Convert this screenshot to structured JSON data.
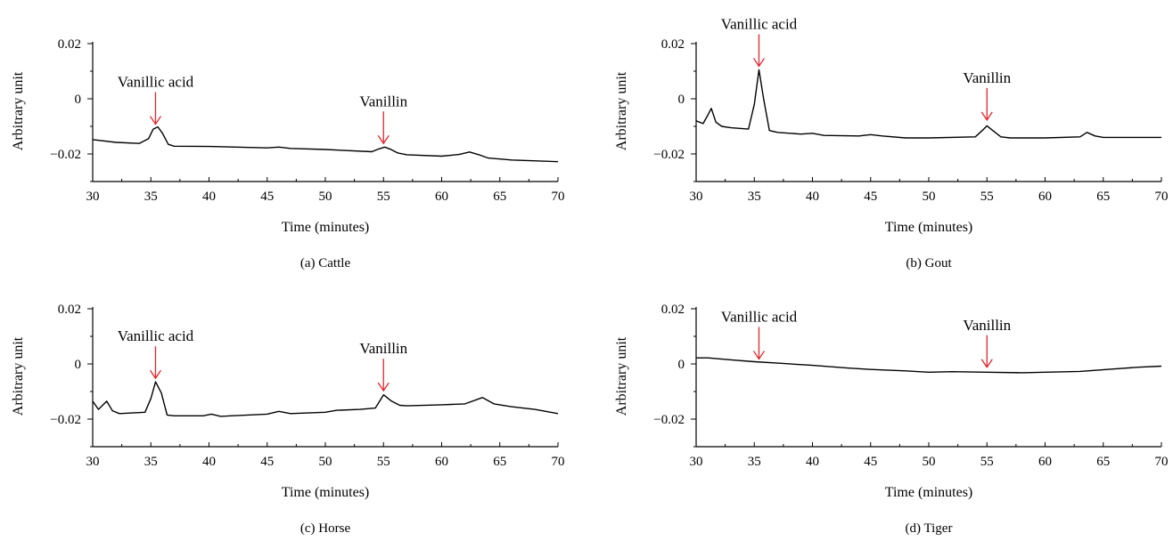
{
  "chart_data": [
    {
      "type": "line",
      "caption": "(a)  Cattle",
      "xlabel": "Time (minutes)",
      "ylabel": "Arbitrary unit",
      "xlim": [
        30,
        70
      ],
      "ylim": [
        -0.03,
        0.02
      ],
      "xticks": [
        30,
        35,
        40,
        45,
        50,
        55,
        60,
        65,
        70
      ],
      "yticks": [
        0.02,
        0,
        -0.02
      ],
      "ytick_labels": [
        "0.02",
        "0",
        "−0.02"
      ],
      "annotations": [
        {
          "label": "Vanillic acid",
          "x": 35.4,
          "y": -0.0105,
          "arrow_color": "#e3242b"
        },
        {
          "label": "Vanillin",
          "x": 55.0,
          "y": -0.0175,
          "arrow_color": "#e3242b"
        }
      ],
      "series": [
        {
          "x": [
            30,
            32,
            34,
            34.8,
            35.2,
            35.6,
            36.0,
            36.5,
            37,
            40,
            45,
            46,
            47,
            50,
            54,
            54.6,
            55.1,
            55.6,
            56.2,
            57,
            60,
            61.5,
            62.4,
            63.2,
            64,
            66,
            70
          ],
          "values": [
            -0.0148,
            -0.0158,
            -0.0162,
            -0.0145,
            -0.011,
            -0.0102,
            -0.0125,
            -0.0165,
            -0.0172,
            -0.0173,
            -0.0178,
            -0.0175,
            -0.018,
            -0.0184,
            -0.0192,
            -0.0182,
            -0.0175,
            -0.0183,
            -0.0196,
            -0.0203,
            -0.0208,
            -0.0202,
            -0.0193,
            -0.0203,
            -0.0215,
            -0.0222,
            -0.0228
          ]
        }
      ]
    },
    {
      "type": "line",
      "caption": "(b)  Gout",
      "xlabel": "Time (minutes)",
      "ylabel": "Arbitrary unit",
      "xlim": [
        30,
        70
      ],
      "ylim": [
        -0.03,
        0.02
      ],
      "xticks": [
        30,
        35,
        40,
        45,
        50,
        55,
        60,
        65,
        70
      ],
      "yticks": [
        0.02,
        0,
        -0.02
      ],
      "ytick_labels": [
        "0.02",
        "0",
        "−0.02"
      ],
      "annotations": [
        {
          "label": "Vanillic acid",
          "x": 35.4,
          "y": 0.0105,
          "arrow_color": "#e3242b"
        },
        {
          "label": "Vanillin",
          "x": 55.0,
          "y": -0.009,
          "arrow_color": "#e3242b"
        }
      ],
      "series": [
        {
          "x": [
            30,
            30.6,
            31.0,
            31.3,
            31.7,
            32.2,
            33,
            34.5,
            35.0,
            35.4,
            35.8,
            36.3,
            37,
            39,
            40,
            41,
            44,
            45,
            46,
            48,
            50,
            54,
            54.6,
            55.0,
            55.5,
            56.2,
            57,
            60,
            63,
            63.6,
            64.3,
            65,
            70
          ],
          "values": [
            -0.008,
            -0.009,
            -0.006,
            -0.0035,
            -0.0085,
            -0.01,
            -0.0105,
            -0.011,
            -0.002,
            0.0105,
            0.0,
            -0.0115,
            -0.0122,
            -0.0128,
            -0.0125,
            -0.0133,
            -0.0135,
            -0.013,
            -0.0135,
            -0.0142,
            -0.0142,
            -0.0138,
            -0.0115,
            -0.0098,
            -0.0115,
            -0.0138,
            -0.0142,
            -0.0142,
            -0.0138,
            -0.0122,
            -0.0135,
            -0.014,
            -0.014
          ]
        }
      ]
    },
    {
      "type": "line",
      "caption": "(c)  Horse",
      "xlabel": "Time (minutes)",
      "ylabel": "Arbitrary unit",
      "xlim": [
        30,
        70
      ],
      "ylim": [
        -0.03,
        0.02
      ],
      "xticks": [
        30,
        35,
        40,
        45,
        50,
        55,
        60,
        65,
        70
      ],
      "yticks": [
        0.02,
        0,
        -0.02
      ],
      "ytick_labels": [
        "0.02",
        "0",
        "−0.02"
      ],
      "annotations": [
        {
          "label": "Vanillic acid",
          "x": 35.4,
          "y": -0.0065,
          "arrow_color": "#e3242b"
        },
        {
          "label": "Vanillin",
          "x": 55.0,
          "y": -0.011,
          "arrow_color": "#e3242b"
        }
      ],
      "series": [
        {
          "x": [
            30,
            30.5,
            31.2,
            31.7,
            32.3,
            34.5,
            35.0,
            35.4,
            35.9,
            36.4,
            37,
            39.5,
            40.2,
            41,
            45,
            46.0,
            47,
            50,
            51,
            53,
            54.3,
            55.0,
            55.7,
            56.4,
            57,
            60,
            62,
            63.5,
            64.5,
            66,
            68,
            70
          ],
          "values": [
            -0.0135,
            -0.0165,
            -0.0135,
            -0.017,
            -0.018,
            -0.0175,
            -0.0125,
            -0.0065,
            -0.0105,
            -0.0185,
            -0.0188,
            -0.0188,
            -0.0182,
            -0.019,
            -0.0182,
            -0.0172,
            -0.018,
            -0.0175,
            -0.0168,
            -0.0165,
            -0.016,
            -0.0112,
            -0.0135,
            -0.015,
            -0.0152,
            -0.0148,
            -0.0145,
            -0.0122,
            -0.0145,
            -0.0155,
            -0.0165,
            -0.018
          ]
        }
      ]
    },
    {
      "type": "line",
      "caption": "(d)  Tiger",
      "xlabel": "Time (minutes)",
      "ylabel": "Arbitrary unit",
      "xlim": [
        30,
        70
      ],
      "ylim": [
        -0.03,
        0.02
      ],
      "xticks": [
        30,
        35,
        40,
        45,
        50,
        55,
        60,
        65,
        70
      ],
      "yticks": [
        0.02,
        0,
        -0.02
      ],
      "ytick_labels": [
        "0.02",
        "0",
        "−0.02"
      ],
      "annotations": [
        {
          "label": "Vanillic acid",
          "x": 35.4,
          "y": 0.0005,
          "arrow_color": "#e3242b"
        },
        {
          "label": "Vanillin",
          "x": 55.0,
          "y": -0.0025,
          "arrow_color": "#e3242b"
        }
      ],
      "series": [
        {
          "x": [
            30,
            31,
            33,
            35,
            37,
            40,
            43,
            45,
            48,
            50,
            52,
            55,
            58,
            60,
            63,
            66,
            68,
            70
          ],
          "values": [
            0.0022,
            0.0022,
            0.0015,
            0.0008,
            0.0003,
            -0.0005,
            -0.0015,
            -0.002,
            -0.0025,
            -0.003,
            -0.0028,
            -0.003,
            -0.0032,
            -0.003,
            -0.0027,
            -0.0018,
            -0.0012,
            -0.0008
          ]
        }
      ]
    }
  ]
}
